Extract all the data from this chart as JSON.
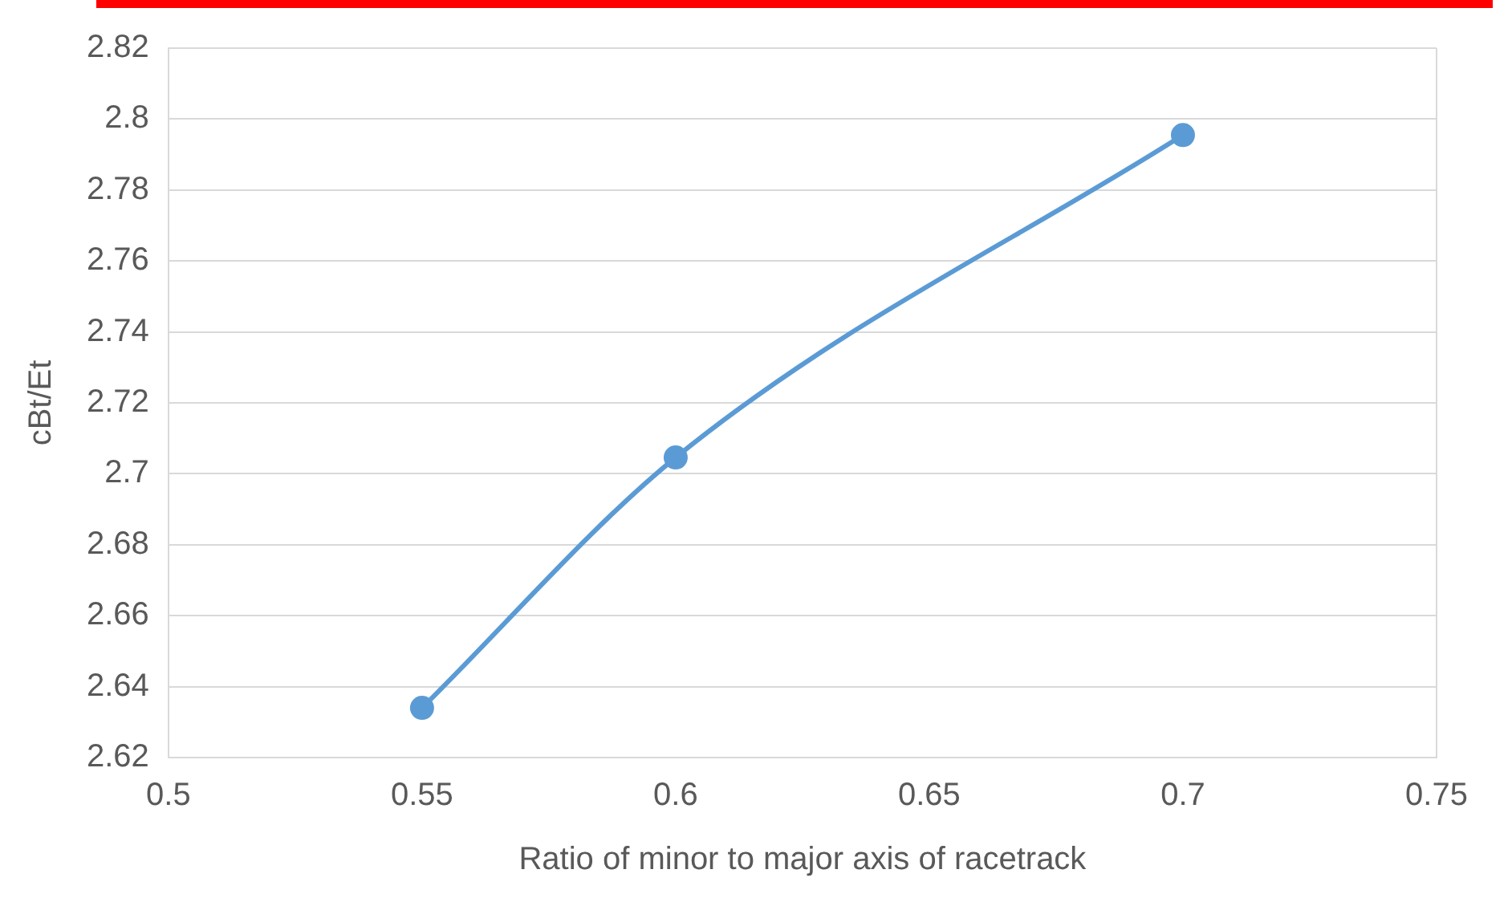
{
  "chart_data": {
    "type": "line",
    "xlabel": "Ratio of minor to major axis of racetrack",
    "ylabel": "cBt/Et",
    "x": [
      0.55,
      0.6,
      0.7
    ],
    "series": [
      {
        "color": "#5b9bd5",
        "values": [
          2.634,
          2.7046,
          2.7955
        ]
      }
    ],
    "xlim": [
      0.5,
      0.75
    ],
    "xticks": [
      0.5,
      0.55,
      0.6,
      0.65,
      0.7,
      0.75
    ],
    "ylim": [
      2.62,
      2.82
    ],
    "yticks": [
      2.62,
      2.64,
      2.66,
      2.68,
      2.7,
      2.72,
      2.74,
      2.76,
      2.78,
      2.8,
      2.82
    ],
    "grid": "y",
    "legend": false,
    "marker": "circle",
    "line_style": "solid"
  }
}
